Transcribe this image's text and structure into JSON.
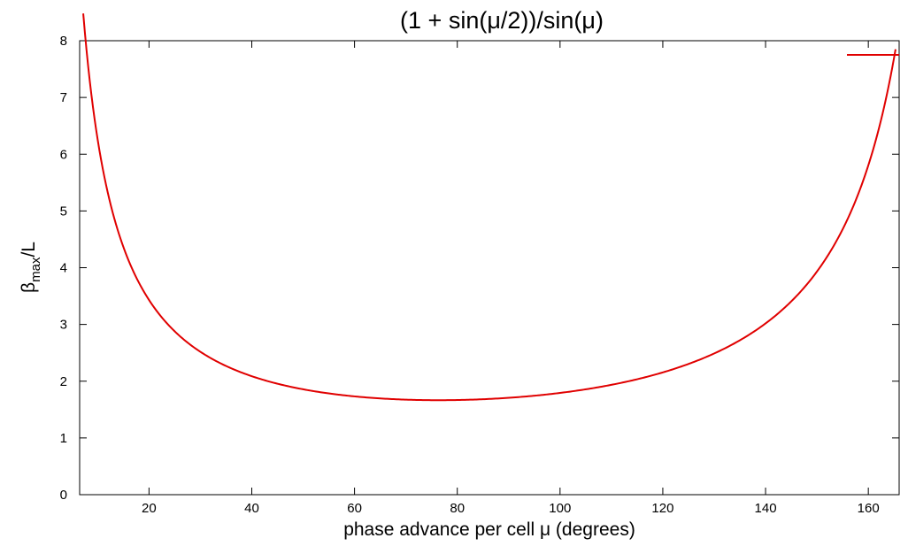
{
  "chart_data": {
    "type": "line",
    "title": "(1 + sin(μ/2))/sin(μ)",
    "xlabel": "phase advance per cell μ (degrees)",
    "ylabel": {
      "base": "β",
      "subscript": "max",
      "suffix": "/L"
    },
    "xlim": [
      6.5,
      166
    ],
    "ylim": [
      0,
      8
    ],
    "x_ticks": [
      20,
      40,
      60,
      80,
      100,
      120,
      140,
      160
    ],
    "y_ticks": [
      0,
      1,
      2,
      3,
      4,
      5,
      6,
      7,
      8
    ],
    "grid": false,
    "legend": {
      "position": "top-right",
      "entries": [
        {
          "label": "",
          "color": "#e00000"
        }
      ]
    },
    "series": [
      {
        "color": "#e00000",
        "expression": "(1 + sin(mu/2)) / sin(mu)",
        "x_unit": "degrees",
        "x": [
          7.2,
          8,
          10,
          12,
          15,
          20,
          25,
          30,
          40,
          50,
          60,
          70,
          76.3,
          80,
          90,
          100,
          110,
          120,
          130,
          140,
          145,
          150,
          155,
          160,
          162,
          164,
          165.3
        ],
        "y": [
          8.0,
          7.19,
          5.76,
          4.81,
          3.86,
          2.92,
          2.47,
          2.21,
          1.92,
          1.78,
          1.71,
          1.67,
          1.67,
          1.67,
          1.71,
          1.79,
          1.93,
          2.15,
          2.49,
          3.02,
          3.42,
          3.93,
          4.65,
          5.73,
          6.34,
          7.11,
          7.75
        ]
      }
    ]
  }
}
